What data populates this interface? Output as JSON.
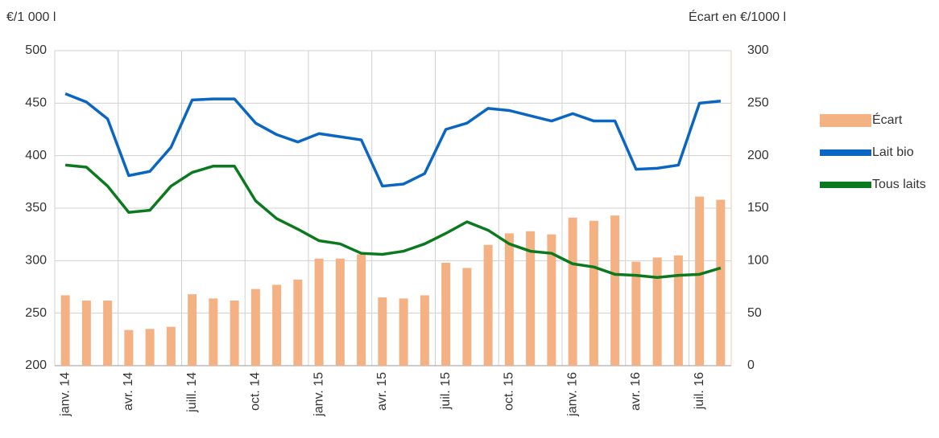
{
  "chart_data": {
    "type": "bar_line",
    "y_label": "€/1 000 l",
    "y2_label": "Écart en €/1000 l",
    "categories": [
      "janv. 14",
      null,
      null,
      "avr. 14",
      null,
      null,
      "juill. 14",
      null,
      null,
      "oct. 14",
      null,
      null,
      "janv. 15",
      null,
      null,
      "avr. 15",
      null,
      null,
      "juil. 15",
      null,
      null,
      "oct. 15",
      null,
      null,
      "janv. 16",
      null,
      null,
      "avr. 16",
      null,
      null,
      "juil. 16",
      null
    ],
    "series": [
      {
        "name": "Écart",
        "type": "bar",
        "axis": "y2",
        "color": "#f4b183",
        "values": [
          67,
          62,
          62,
          34,
          35,
          37,
          68,
          64,
          62,
          73,
          77,
          82,
          102,
          102,
          106,
          65,
          64,
          67,
          98,
          93,
          115,
          126,
          128,
          125,
          141,
          138,
          143,
          99,
          103,
          105,
          161,
          158
        ]
      },
      {
        "name": "Lait bio",
        "type": "line",
        "color": "#0a66c2",
        "values": [
          459,
          451,
          435,
          381,
          385,
          408,
          453,
          454,
          454,
          431,
          420,
          413,
          421,
          418,
          415,
          371,
          373,
          383,
          425,
          431,
          445,
          443,
          438,
          433,
          440,
          433,
          433,
          387,
          388,
          391,
          450,
          452
        ]
      },
      {
        "name": "Tous laits",
        "type": "line",
        "color": "#0b7a1f",
        "values": [
          391,
          389,
          371,
          346,
          348,
          371,
          384,
          390,
          390,
          357,
          340,
          330,
          319,
          316,
          307,
          306,
          309,
          316,
          326,
          337,
          329,
          316,
          309,
          307,
          297,
          294,
          287,
          286,
          284,
          286,
          287,
          293
        ]
      }
    ],
    "ylim": [
      200,
      500
    ],
    "yticks": [
      200,
      250,
      300,
      350,
      400,
      450,
      500
    ],
    "y2lim": [
      0,
      300
    ],
    "y2ticks": [
      0,
      50,
      100,
      150,
      200,
      250,
      300
    ],
    "grid": true,
    "legend": "right"
  }
}
